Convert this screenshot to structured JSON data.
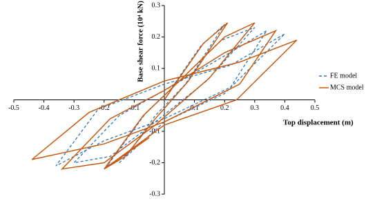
{
  "chart_data": {
    "type": "line",
    "x_label": "Top displacement (m)",
    "y_label": "Base shear force (10⁴ kN)",
    "xlim": [
      -0.5,
      0.5
    ],
    "ylim": [
      -0.3,
      0.3
    ],
    "xticks": [
      -0.5,
      -0.4,
      -0.3,
      -0.2,
      -0.1,
      0.1,
      0.2,
      0.3,
      0.4,
      0.5
    ],
    "yticks": [
      -0.3,
      -0.2,
      -0.1,
      0.1,
      0.2,
      0.3
    ],
    "legend": "right",
    "series": [
      {
        "name": "FE model",
        "color": "#2e75b6",
        "dash": true,
        "x": [
          0,
          0.04,
          0.12,
          0.2,
          0.07,
          -0.03,
          -0.12,
          -0.19,
          -0.06,
          0.05,
          0.19,
          0.3,
          0.14,
          -0.03,
          -0.18,
          -0.3,
          -0.15,
          0.0,
          0.2,
          0.34,
          0.22,
          0.0,
          -0.2,
          -0.36,
          -0.22,
          0.0,
          0.22,
          0.4,
          0.2,
          0.0,
          -0.15
        ],
        "values": [
          0,
          0.06,
          0.17,
          0.24,
          0.05,
          -0.05,
          -0.17,
          -0.21,
          -0.04,
          0.06,
          0.19,
          0.23,
          0.06,
          -0.07,
          -0.18,
          -0.2,
          -0.05,
          0.03,
          0.14,
          0.22,
          0.04,
          -0.06,
          -0.13,
          -0.21,
          -0.03,
          0.05,
          0.11,
          0.21,
          0.02,
          -0.07,
          -0.2
        ]
      },
      {
        "name": "MCS model",
        "color": "#c55a11",
        "dash": false,
        "x": [
          0,
          0.05,
          0.13,
          0.21,
          0.08,
          -0.03,
          -0.13,
          -0.2,
          -0.07,
          0.05,
          0.2,
          0.3,
          0.15,
          -0.03,
          -0.2,
          -0.34,
          -0.18,
          0.0,
          0.2,
          0.37,
          0.25,
          0.0,
          -0.2,
          -0.44,
          -0.25,
          0.0,
          0.25,
          0.44,
          0.24,
          0.0,
          -0.2,
          -0.05
        ],
        "values": [
          0,
          0.07,
          0.18,
          0.245,
          0.06,
          -0.06,
          -0.18,
          -0.22,
          -0.05,
          0.06,
          0.2,
          0.245,
          0.07,
          -0.08,
          -0.2,
          -0.22,
          -0.06,
          0.03,
          0.15,
          0.22,
          0.05,
          -0.07,
          -0.14,
          -0.19,
          -0.04,
          0.06,
          0.12,
          0.19,
          0.0,
          -0.08,
          -0.22,
          -0.12
        ]
      }
    ]
  }
}
